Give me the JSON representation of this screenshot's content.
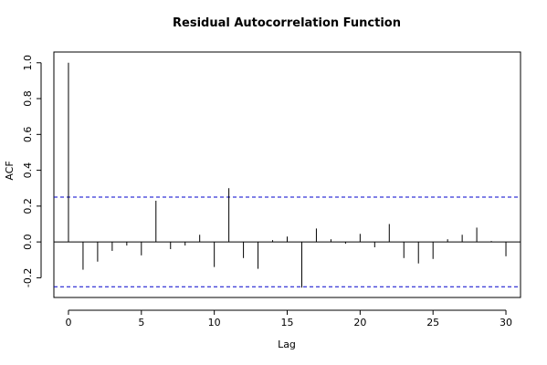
{
  "chart_data": {
    "type": "bar",
    "title": "Residual Autocorrelation Function",
    "xlabel": "Lag",
    "ylabel": "ACF",
    "xlim": [
      -1,
      31
    ],
    "ylim": [
      -0.31,
      1.06
    ],
    "x_ticks": [
      0,
      5,
      10,
      15,
      20,
      25,
      30
    ],
    "x_tick_labels": [
      "0",
      "5",
      "10",
      "15",
      "20",
      "25",
      "30"
    ],
    "y_ticks": [
      -0.2,
      0.0,
      0.2,
      0.4,
      0.6,
      0.8,
      1.0
    ],
    "y_tick_labels": [
      "-0.2",
      "0.0",
      "0.2",
      "0.4",
      "0.6",
      "0.8",
      "1.0"
    ],
    "confidence_bounds": [
      0.25,
      -0.25
    ],
    "lags": [
      0,
      1,
      2,
      3,
      4,
      5,
      6,
      7,
      8,
      9,
      10,
      11,
      12,
      13,
      14,
      15,
      16,
      17,
      18,
      19,
      20,
      21,
      22,
      23,
      24,
      25,
      26,
      27,
      28,
      29,
      30
    ],
    "values": [
      1.0,
      -0.155,
      -0.11,
      -0.05,
      -0.02,
      -0.075,
      0.23,
      -0.04,
      -0.02,
      0.04,
      -0.14,
      0.3,
      -0.09,
      -0.15,
      0.01,
      0.03,
      -0.255,
      0.075,
      0.015,
      -0.01,
      0.045,
      -0.03,
      0.1,
      -0.09,
      -0.12,
      -0.095,
      0.015,
      0.04,
      0.08,
      0.005,
      -0.08
    ],
    "grid": false,
    "colors": {
      "bars": "#000000",
      "bounds": "#0000cc",
      "frame": "#000000"
    }
  }
}
